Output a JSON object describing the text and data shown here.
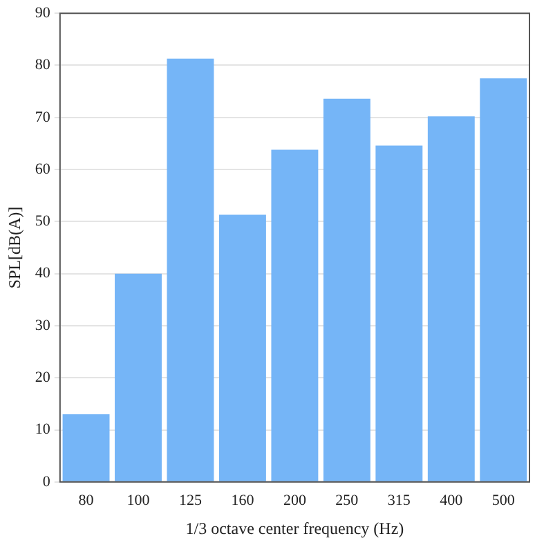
{
  "chart_data": {
    "type": "bar",
    "xlabel": "1/3 octave center frequency (Hz)",
    "ylabel": "SPL[dB(A)]",
    "categories": [
      "80",
      "100",
      "125",
      "160",
      "200",
      "250",
      "315",
      "400",
      "500"
    ],
    "values": [
      13,
      40,
      81.3,
      51.3,
      63.8,
      73.6,
      64.6,
      70.2,
      77.5
    ],
    "color": "#75b5f7",
    "ylim": [
      0,
      90
    ],
    "yticks": [
      0,
      10,
      20,
      30,
      40,
      50,
      60,
      70,
      80,
      90
    ],
    "grid": "y"
  }
}
